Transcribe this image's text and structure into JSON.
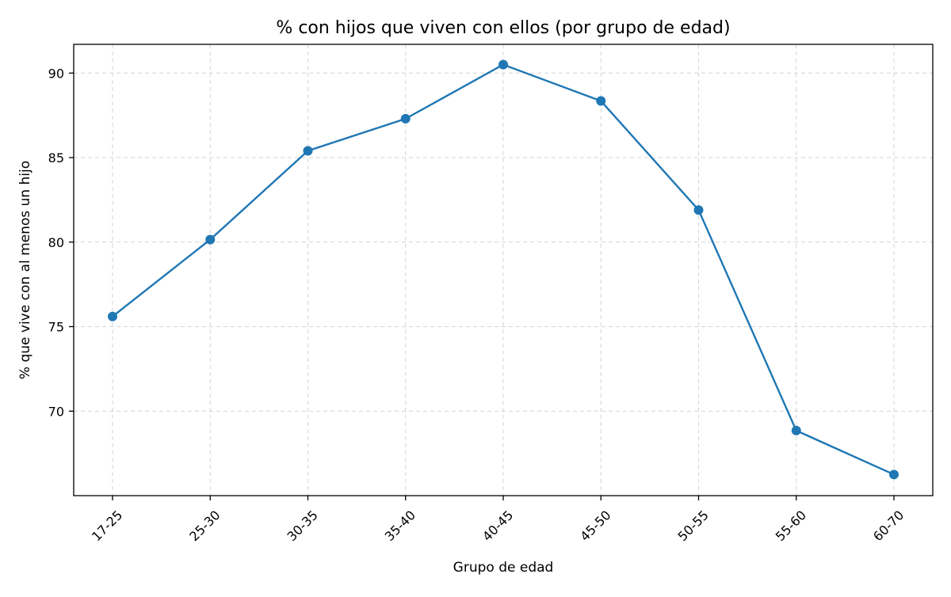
{
  "chart_data": {
    "type": "line",
    "title": "% con hijos que viven con ellos (por grupo de edad)",
    "xlabel": "Grupo de edad",
    "ylabel": "% que vive con al menos un hijo",
    "categories": [
      "17-25",
      "25-30",
      "30-35",
      "35-40",
      "40-45",
      "45-50",
      "50-55",
      "55-60",
      "60-70"
    ],
    "series": [
      {
        "values": [
          75.6,
          80.15,
          85.4,
          87.3,
          90.5,
          88.35,
          81.9,
          68.85,
          66.25
        ]
      }
    ],
    "ylim": [
      65.0,
      91.7
    ],
    "yticks": [
      70,
      75,
      80,
      85,
      90
    ],
    "grid": true,
    "legend": "none",
    "series_color": "#1f77b4"
  }
}
